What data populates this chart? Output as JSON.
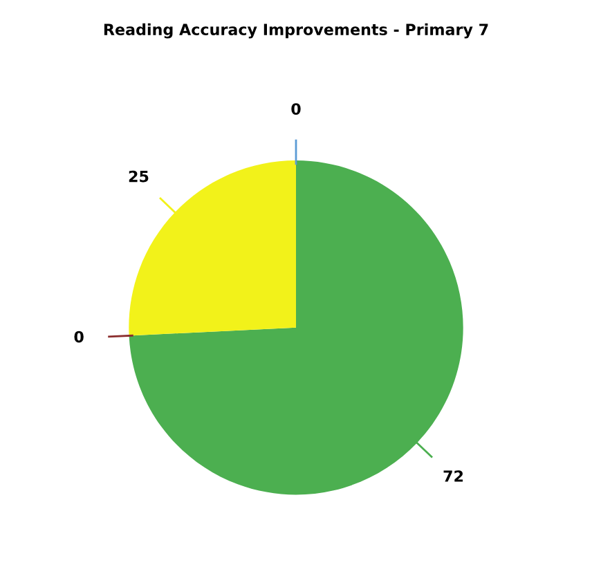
{
  "chart_data": {
    "type": "pie",
    "title": "Reading Accuracy Improvements - Primary 7",
    "categories": [
      null,
      null,
      null,
      null
    ],
    "values": [
      0,
      72,
      0,
      25
    ],
    "colors": [
      "#5b9bd5",
      "#4caf50",
      "#8b2e2e",
      "#f2f21a"
    ],
    "value_labels": [
      "0",
      "72",
      "0",
      "25"
    ]
  }
}
